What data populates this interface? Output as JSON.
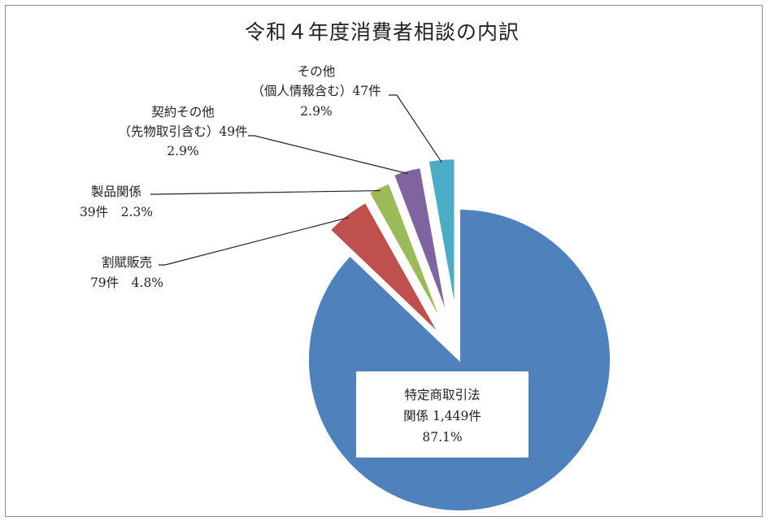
{
  "chart_data": {
    "type": "pie",
    "title": "令和４年度消費者相談の内訳",
    "slices": [
      {
        "lines": [
          "特定商取引法",
          "関係 1,449件",
          "87.1%"
        ],
        "count": 1449,
        "percent": 87.1,
        "color": "#4f81bd",
        "exploded": false,
        "label_box": true
      },
      {
        "lines": [
          "割賦販売",
          "79件　4.8%"
        ],
        "count": 79,
        "percent": 4.8,
        "color": "#c0504d",
        "exploded": true,
        "label_box": false
      },
      {
        "lines": [
          "製品関係",
          "39件　2.3%"
        ],
        "count": 39,
        "percent": 2.3,
        "color": "#9bbb59",
        "exploded": true,
        "label_box": false
      },
      {
        "lines": [
          "契約その他",
          "（先物取引含む）49件",
          "2.9%"
        ],
        "count": 49,
        "percent": 2.9,
        "color": "#8064a2",
        "exploded": true,
        "label_box": false
      },
      {
        "lines": [
          "その他",
          "（個人情報含む）47件",
          "2.9%"
        ],
        "count": 47,
        "percent": 2.9,
        "color": "#4bacc6",
        "exploded": true,
        "label_box": false
      }
    ],
    "legend": "none"
  }
}
